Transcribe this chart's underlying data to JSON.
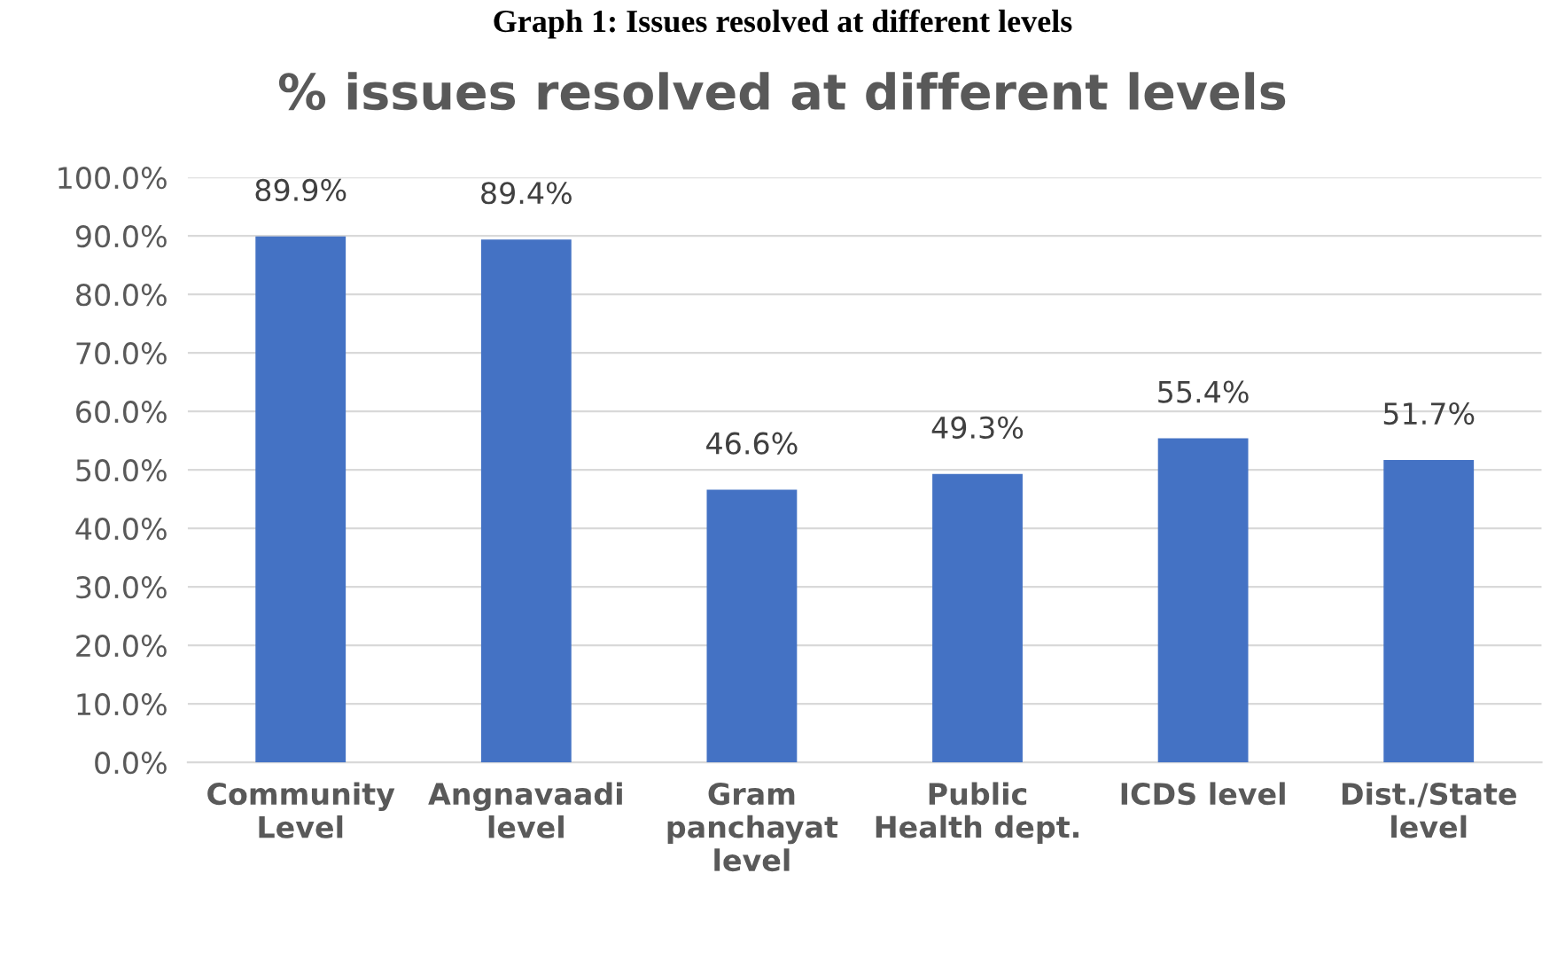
{
  "chart_data": {
    "type": "bar",
    "title": "% issues resolved at different levels",
    "annotations": [
      "Graph 1: Issues resolved at different levels"
    ],
    "categories": [
      "Community\nLevel",
      "Angnavaadi\nlevel",
      "Gram\npanchayat\nlevel",
      "Public\nHealth dept.",
      "ICDS level",
      "Dist./State\nlevel"
    ],
    "values": [
      89.9,
      89.4,
      46.6,
      49.3,
      55.4,
      51.7
    ],
    "value_labels": [
      "89.9%",
      "89.4%",
      "46.6%",
      "49.3%",
      "55.4%",
      "51.7%"
    ],
    "color": "#4472c4",
    "ylim": [
      0,
      100
    ],
    "yticks": [
      {
        "value": 0,
        "label": "0.0%"
      },
      {
        "value": 10,
        "label": "10.0%"
      },
      {
        "value": 20,
        "label": "20.0%"
      },
      {
        "value": 30,
        "label": "30.0%"
      },
      {
        "value": 40,
        "label": "40.0%"
      },
      {
        "value": 50,
        "label": "50.0%"
      },
      {
        "value": 60,
        "label": "60.0%"
      },
      {
        "value": 70,
        "label": "70.0%"
      },
      {
        "value": 80,
        "label": "80.0%"
      },
      {
        "value": 90,
        "label": "90.0%"
      },
      {
        "value": 100,
        "label": "100.0%"
      }
    ],
    "grid": "y",
    "legend": false
  }
}
